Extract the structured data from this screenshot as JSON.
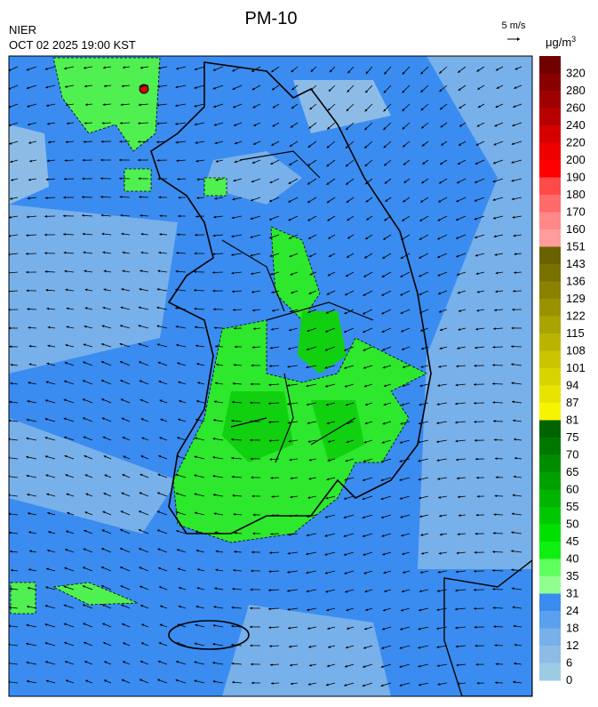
{
  "header": {
    "title": "PM-10",
    "source": "NIER",
    "timestamp": "OCT 02 2025 19:00 KST"
  },
  "wind_scale": {
    "label": "5 m/s"
  },
  "unit": {
    "base": "μg/m",
    "exponent": "3"
  },
  "legend": [
    {
      "label": "320",
      "color": "#700000"
    },
    {
      "label": "280",
      "color": "#880000"
    },
    {
      "label": "260",
      "color": "#a00000"
    },
    {
      "label": "240",
      "color": "#b80000"
    },
    {
      "label": "220",
      "color": "#d40000"
    },
    {
      "label": "200",
      "color": "#ee0000"
    },
    {
      "label": "190",
      "color": "#ff0000"
    },
    {
      "label": "180",
      "color": "#ff4a4a"
    },
    {
      "label": "170",
      "color": "#ff6a6a"
    },
    {
      "label": "160",
      "color": "#ff8888"
    },
    {
      "label": "151",
      "color": "#ff9c9c"
    },
    {
      "label": "143",
      "color": "#6a6200"
    },
    {
      "label": "136",
      "color": "#7a7200"
    },
    {
      "label": "129",
      "color": "#8a8200"
    },
    {
      "label": "122",
      "color": "#9a9200"
    },
    {
      "label": "115",
      "color": "#aaa400"
    },
    {
      "label": "108",
      "color": "#bab400"
    },
    {
      "label": "101",
      "color": "#cac400"
    },
    {
      "label": "94",
      "color": "#d8d400"
    },
    {
      "label": "87",
      "color": "#e8e400"
    },
    {
      "label": "81",
      "color": "#f8f400"
    },
    {
      "label": "75",
      "color": "#006400"
    },
    {
      "label": "70",
      "color": "#007800"
    },
    {
      "label": "65",
      "color": "#008c00"
    },
    {
      "label": "60",
      "color": "#00a000"
    },
    {
      "label": "55",
      "color": "#00b400"
    },
    {
      "label": "50",
      "color": "#00c800"
    },
    {
      "label": "45",
      "color": "#00e000"
    },
    {
      "label": "40",
      "color": "#10f010"
    },
    {
      "label": "35",
      "color": "#60ff60"
    },
    {
      "label": "31",
      "color": "#90ff90"
    },
    {
      "label": "24",
      "color": "#3a8cf0"
    },
    {
      "label": "18",
      "color": "#5aa0ee"
    },
    {
      "label": "12",
      "color": "#78b0ea"
    },
    {
      "label": "6",
      "color": "#8cbce6"
    },
    {
      "label": "0",
      "color": "#9ccce4"
    }
  ]
}
